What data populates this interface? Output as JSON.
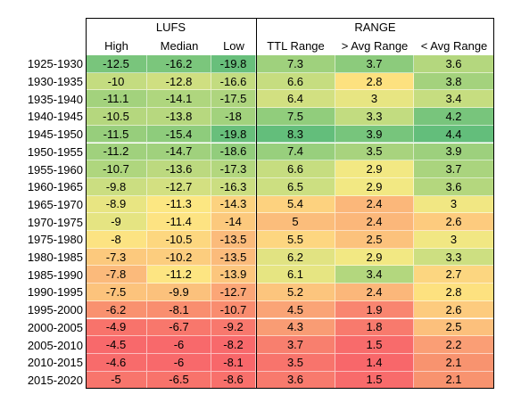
{
  "headers": {
    "groups": [
      {
        "title": "LUFS",
        "columns": [
          "High",
          "Median",
          "Low"
        ]
      },
      {
        "title": "RANGE",
        "columns": [
          "TTL Range",
          "> Avg Range",
          "< Avg Range"
        ]
      }
    ]
  },
  "rows": [
    {
      "label": "1925-1930",
      "cells": [
        {
          "v": "-12.5",
          "c": "#79c57c"
        },
        {
          "v": "-16.2",
          "c": "#7bc67c"
        },
        {
          "v": "-19.8",
          "c": "#68bf7b"
        },
        {
          "v": "7.3",
          "c": "#9fd17d"
        },
        {
          "v": "3.7",
          "c": "#8ccb7c"
        },
        {
          "v": "3.6",
          "c": "#b4d77e"
        }
      ]
    },
    {
      "label": "1930-1935",
      "cells": [
        {
          "v": "-10",
          "c": "#c4dc80"
        },
        {
          "v": "-12.8",
          "c": "#cfdf81"
        },
        {
          "v": "-16.6",
          "c": "#c3dc80"
        },
        {
          "v": "6.6",
          "c": "#c6dd80"
        },
        {
          "v": "2.8",
          "c": "#fde17f"
        },
        {
          "v": "3.8",
          "c": "#a4d27d"
        }
      ]
    },
    {
      "label": "1935-1940",
      "cells": [
        {
          "v": "-11.1",
          "c": "#a3d27d"
        },
        {
          "v": "-14.1",
          "c": "#afd67e"
        },
        {
          "v": "-17.5",
          "c": "#aed57e"
        },
        {
          "v": "6.4",
          "c": "#d2e081"
        },
        {
          "v": "3",
          "c": "#e7e582"
        },
        {
          "v": "3.4",
          "c": "#c6dd80"
        }
      ]
    },
    {
      "label": "1940-1945",
      "cells": [
        {
          "v": "-10.5",
          "c": "#b5d77e"
        },
        {
          "v": "-13.8",
          "c": "#b7d87f"
        },
        {
          "v": "-18",
          "c": "#a2d27d"
        },
        {
          "v": "7.5",
          "c": "#91cd7c"
        },
        {
          "v": "3.3",
          "c": "#c2dc80"
        },
        {
          "v": "4.2",
          "c": "#78c57c"
        }
      ]
    },
    {
      "label": "1945-1950",
      "cells": [
        {
          "v": "-11.5",
          "c": "#97ce7c"
        },
        {
          "v": "-15.4",
          "c": "#8ecc7c"
        },
        {
          "v": "-19.8",
          "c": "#68bf7b"
        },
        {
          "v": "8.3",
          "c": "#63be7b"
        },
        {
          "v": "3.9",
          "c": "#77c57c"
        },
        {
          "v": "4.4",
          "c": "#63be7b"
        }
      ]
    },
    {
      "label": "1950-1955",
      "cells": [
        {
          "v": "-11.2",
          "c": "#a0d17d"
        },
        {
          "v": "-14.7",
          "c": "#a0d17d"
        },
        {
          "v": "-18.6",
          "c": "#92cd7c"
        },
        {
          "v": "7.4",
          "c": "#98cf7d"
        },
        {
          "v": "3.5",
          "c": "#a8d37e"
        },
        {
          "v": "3.9",
          "c": "#9dd07d"
        }
      ]
    },
    {
      "label": "1955-1960",
      "cells": [
        {
          "v": "-10.7",
          "c": "#afd67e"
        },
        {
          "v": "-13.6",
          "c": "#bcd97f"
        },
        {
          "v": "-17.3",
          "c": "#b3d77e"
        },
        {
          "v": "6.6",
          "c": "#c6dd80"
        },
        {
          "v": "2.9",
          "c": "#f2e883"
        },
        {
          "v": "3.7",
          "c": "#aad47e"
        }
      ]
    },
    {
      "label": "1960-1965",
      "cells": [
        {
          "v": "-9.8",
          "c": "#cbde81"
        },
        {
          "v": "-12.7",
          "c": "#d3e081"
        },
        {
          "v": "-16.3",
          "c": "#cbde81"
        },
        {
          "v": "6.5",
          "c": "#ccdf81"
        },
        {
          "v": "2.9",
          "c": "#f2e883"
        },
        {
          "v": "3.6",
          "c": "#b4d77e"
        }
      ]
    },
    {
      "label": "1965-1970",
      "cells": [
        {
          "v": "-8.9",
          "c": "#e8e582"
        },
        {
          "v": "-11.3",
          "c": "#fce782"
        },
        {
          "v": "-14.3",
          "c": "#fcd27f"
        },
        {
          "v": "5.4",
          "c": "#fdd27f"
        },
        {
          "v": "2.4",
          "c": "#fbb77a"
        },
        {
          "v": "3",
          "c": "#f1e783"
        }
      ]
    },
    {
      "label": "1970-1975",
      "cells": [
        {
          "v": "-9",
          "c": "#e5e482"
        },
        {
          "v": "-11.4",
          "c": "#fde382"
        },
        {
          "v": "-14",
          "c": "#fcc97d"
        },
        {
          "v": "5",
          "c": "#fbbd7b"
        },
        {
          "v": "2.4",
          "c": "#fbb77a"
        },
        {
          "v": "2.6",
          "c": "#fdcb7e"
        }
      ]
    },
    {
      "label": "1975-1980",
      "cells": [
        {
          "v": "-8",
          "c": "#fce382"
        },
        {
          "v": "-10.5",
          "c": "#fdd77f"
        },
        {
          "v": "-13.5",
          "c": "#fbbb7b"
        },
        {
          "v": "5.5",
          "c": "#fdd680"
        },
        {
          "v": "2.5",
          "c": "#fcc27c"
        },
        {
          "v": "3",
          "c": "#f1e783"
        }
      ]
    },
    {
      "label": "1980-1985",
      "cells": [
        {
          "v": "-7.3",
          "c": "#fcc97d"
        },
        {
          "v": "-10.2",
          "c": "#fccd7e"
        },
        {
          "v": "-13.5",
          "c": "#fbbb7b"
        },
        {
          "v": "6.2",
          "c": "#e1e382"
        },
        {
          "v": "2.9",
          "c": "#f2e883"
        },
        {
          "v": "3.3",
          "c": "#cddf81"
        }
      ]
    },
    {
      "label": "1985-1990",
      "cells": [
        {
          "v": "-7.8",
          "c": "#fbba7b"
        },
        {
          "v": "-11.2",
          "c": "#fde582"
        },
        {
          "v": "-13.9",
          "c": "#fcc67d"
        },
        {
          "v": "6.1",
          "c": "#e6e582"
        },
        {
          "v": "3.4",
          "c": "#b3d77e"
        },
        {
          "v": "2.7",
          "c": "#fcd680"
        }
      ]
    },
    {
      "label": "1990-1995",
      "cells": [
        {
          "v": "-7.5",
          "c": "#fcc37c"
        },
        {
          "v": "-9.9",
          "c": "#fbc17c"
        },
        {
          "v": "-12.7",
          "c": "#fba677"
        },
        {
          "v": "5.2",
          "c": "#fcc57d"
        },
        {
          "v": "2.4",
          "c": "#fbb77a"
        },
        {
          "v": "2.8",
          "c": "#fde17f"
        }
      ]
    },
    {
      "label": "1995-2000",
      "cells": [
        {
          "v": "-6.2",
          "c": "#f9916f"
        },
        {
          "v": "-8.1",
          "c": "#f98e6f"
        },
        {
          "v": "-10.7",
          "c": "#f98c6f"
        },
        {
          "v": "4.5",
          "c": "#faa476"
        },
        {
          "v": "1.9",
          "c": "#f98570"
        },
        {
          "v": "2.6",
          "c": "#fdcb7e"
        }
      ]
    },
    {
      "label": "2000-2005",
      "cells": [
        {
          "v": "-4.9",
          "c": "#f8736b"
        },
        {
          "v": "-6.7",
          "c": "#f8776c"
        },
        {
          "v": "-9.2",
          "c": "#f8786d"
        },
        {
          "v": "4.3",
          "c": "#f99c74"
        },
        {
          "v": "1.8",
          "c": "#f87a6d"
        },
        {
          "v": "2.5",
          "c": "#fcc07c"
        }
      ]
    },
    {
      "label": "2005-2010",
      "cells": [
        {
          "v": "-4.5",
          "c": "#f8696b"
        },
        {
          "v": "-6",
          "c": "#f8696b"
        },
        {
          "v": "-8.2",
          "c": "#f8696b"
        },
        {
          "v": "3.7",
          "c": "#f87f6e"
        },
        {
          "v": "1.5",
          "c": "#f86b6b"
        },
        {
          "v": "2.2",
          "c": "#fa9e75"
        }
      ]
    },
    {
      "label": "2010-2015",
      "cells": [
        {
          "v": "-4.6",
          "c": "#f86b6b"
        },
        {
          "v": "-6",
          "c": "#f8696b"
        },
        {
          "v": "-8.1",
          "c": "#f8676a"
        },
        {
          "v": "3.5",
          "c": "#f8746c"
        },
        {
          "v": "1.4",
          "c": "#f8676a"
        },
        {
          "v": "2.1",
          "c": "#f8936f"
        }
      ]
    },
    {
      "label": "2015-2020",
      "cells": [
        {
          "v": "-5",
          "c": "#f8756c"
        },
        {
          "v": "-6.5",
          "c": "#f8736b"
        },
        {
          "v": "-8.6",
          "c": "#f8706b"
        },
        {
          "v": "3.6",
          "c": "#f87a6d"
        },
        {
          "v": "1.5",
          "c": "#f86b6b"
        },
        {
          "v": "2.1",
          "c": "#f8936f"
        }
      ]
    }
  ]
}
